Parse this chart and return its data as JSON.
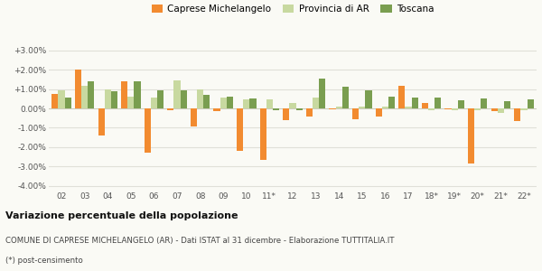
{
  "categories": [
    "02",
    "03",
    "04",
    "05",
    "06",
    "07",
    "08",
    "09",
    "10",
    "11*",
    "12",
    "13",
    "14",
    "15",
    "16",
    "17",
    "18*",
    "19*",
    "20*",
    "21*",
    "22*"
  ],
  "caprese": [
    0.75,
    2.02,
    -1.4,
    1.42,
    -2.3,
    -0.1,
    -0.95,
    -0.12,
    -2.2,
    -2.65,
    -0.6,
    -0.4,
    -0.05,
    -0.55,
    -0.4,
    1.15,
    0.27,
    -0.05,
    -2.85,
    -0.15,
    -0.65
  ],
  "provincia": [
    0.95,
    1.18,
    0.98,
    0.6,
    0.58,
    1.45,
    1.0,
    0.55,
    0.47,
    0.48,
    0.28,
    0.55,
    0.1,
    0.08,
    0.08,
    0.08,
    -0.1,
    -0.1,
    -0.08,
    -0.22,
    -0.1
  ],
  "toscana": [
    0.55,
    1.38,
    0.88,
    1.4,
    0.92,
    0.92,
    0.68,
    0.6,
    0.5,
    -0.1,
    -0.1,
    1.52,
    1.12,
    0.92,
    0.6,
    0.55,
    0.58,
    0.4,
    0.5,
    0.38,
    0.48
  ],
  "color_caprese": "#f28b30",
  "color_provincia": "#c8d9a0",
  "color_toscana": "#7a9e50",
  "background": "#fafaf5",
  "grid_color": "#e0e0d8",
  "title_bold": "Variazione percentuale della popolazione",
  "subtitle": "COMUNE DI CAPRESE MICHELANGELO (AR) - Dati ISTAT al 31 dicembre - Elaborazione TUTTITALIA.IT",
  "footnote": "(*) post-censimento",
  "ylim": [
    -4.2,
    3.5
  ],
  "yticks": [
    -4.0,
    -3.0,
    -2.0,
    -1.0,
    0.0,
    1.0,
    2.0,
    3.0
  ]
}
